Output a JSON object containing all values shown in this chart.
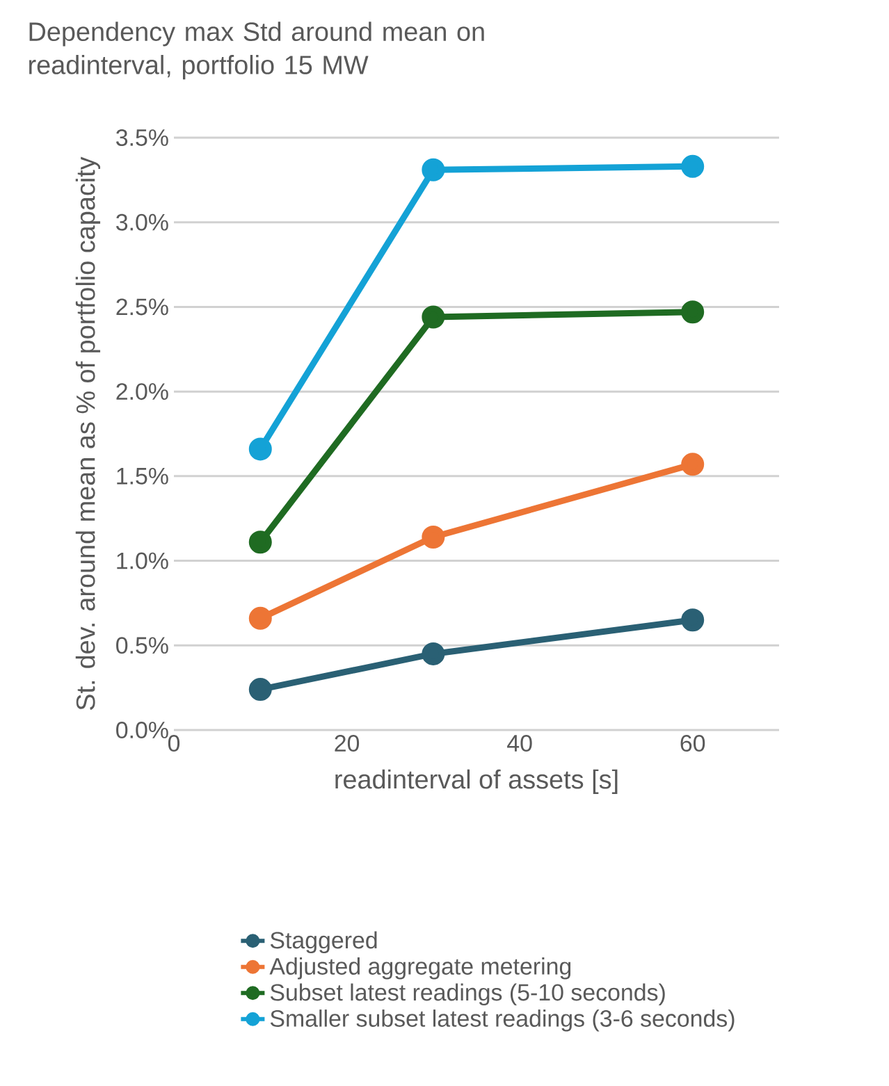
{
  "chart_data": {
    "type": "line",
    "title": "Dependency max Std around mean on readinterval, portfolio 15 MW",
    "xlabel": "readinterval of assets [s]",
    "ylabel": "St. dev. around mean as % of portfolio capacity",
    "x": [
      10,
      30,
      60
    ],
    "xlim": [
      0,
      70
    ],
    "xticks": [
      0,
      20,
      40,
      60
    ],
    "ylim": [
      0,
      3.5
    ],
    "yticks": [
      {
        "value": 0,
        "label": "0.0%"
      },
      {
        "value": 0.5,
        "label": "0.5%"
      },
      {
        "value": 1,
        "label": "1.0%"
      },
      {
        "value": 1.5,
        "label": "1.5%"
      },
      {
        "value": 2,
        "label": "2.0%"
      },
      {
        "value": 2.5,
        "label": "2.5%"
      },
      {
        "value": 3,
        "label": "3.0%"
      },
      {
        "value": 3.5,
        "label": "3.5%"
      }
    ],
    "grid": "y",
    "legend": "bottom",
    "marker": "circle",
    "line_style": "solid",
    "series": [
      {
        "name": "Staggered",
        "color": "#2a6074",
        "values": [
          0.24,
          0.45,
          0.65
        ]
      },
      {
        "name": "Adjusted aggregate metering",
        "color": "#ed7535",
        "values": [
          0.66,
          1.14,
          1.57
        ]
      },
      {
        "name": "Subset latest readings  (5-10 seconds)",
        "color": "#1f6b22",
        "values": [
          1.11,
          2.44,
          2.47
        ]
      },
      {
        "name": "Smaller subset latest readings  (3-6 seconds)",
        "color": "#14a2d6",
        "values": [
          1.66,
          3.31,
          3.33
        ]
      }
    ]
  }
}
